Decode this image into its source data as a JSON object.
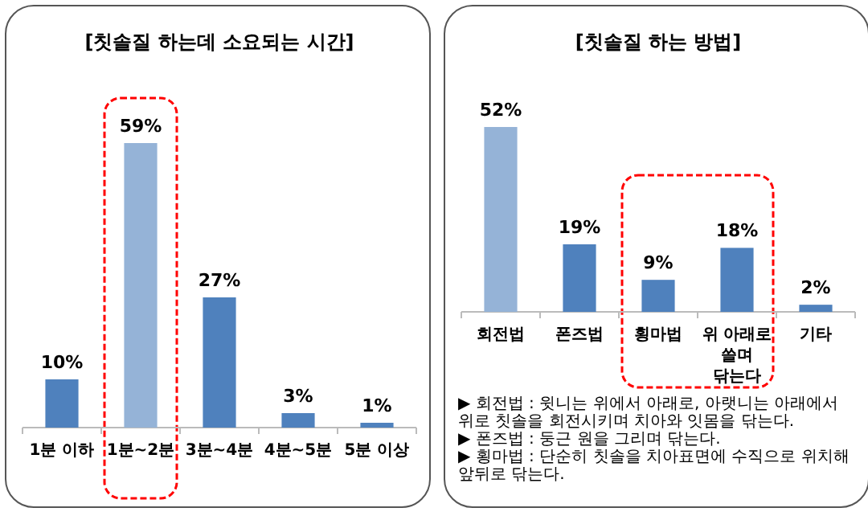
{
  "chart_data": [
    {
      "type": "bar",
      "title": "[칫솔질 하는데 소요되는 시간]",
      "categories": [
        "1분 이하",
        "1분~2분",
        "3분~4분",
        "4분~5분",
        "5분 이상"
      ],
      "values": [
        10,
        59,
        27,
        3,
        1
      ],
      "value_labels": [
        "10%",
        "59%",
        "27%",
        "3%",
        "1%"
      ],
      "colors": [
        "#4f81bd",
        "#95b3d7",
        "#4f81bd",
        "#4f81bd",
        "#4f81bd"
      ]
    },
    {
      "type": "bar",
      "title": "[칫솔질 하는 방법]",
      "categories": [
        "회전법",
        "폰즈법",
        "횡마법",
        "위 아래로 쓸며 닦는다",
        "기타"
      ],
      "values": [
        52,
        19,
        9,
        18,
        2
      ],
      "value_labels": [
        "52%",
        "19%",
        "9%",
        "18%",
        "2%"
      ],
      "colors": [
        "#95b3d7",
        "#4f81bd",
        "#4f81bd",
        "#4f81bd",
        "#4f81bd"
      ],
      "annotations": [
        "▶ 회전법 : 윗니는 위에서 아래로, 아랫니는 아래에서 위로 칫솔을 회전시키며 치아와 잇몸을 닦는다.",
        "▶ 폰즈법 : 둥근 원을 그리며 닦는다.",
        "▶ 횡마법 : 단순히 칫솔을 치아표면에 수직으로 위치해 앞뒤로 닦는다."
      ]
    }
  ]
}
